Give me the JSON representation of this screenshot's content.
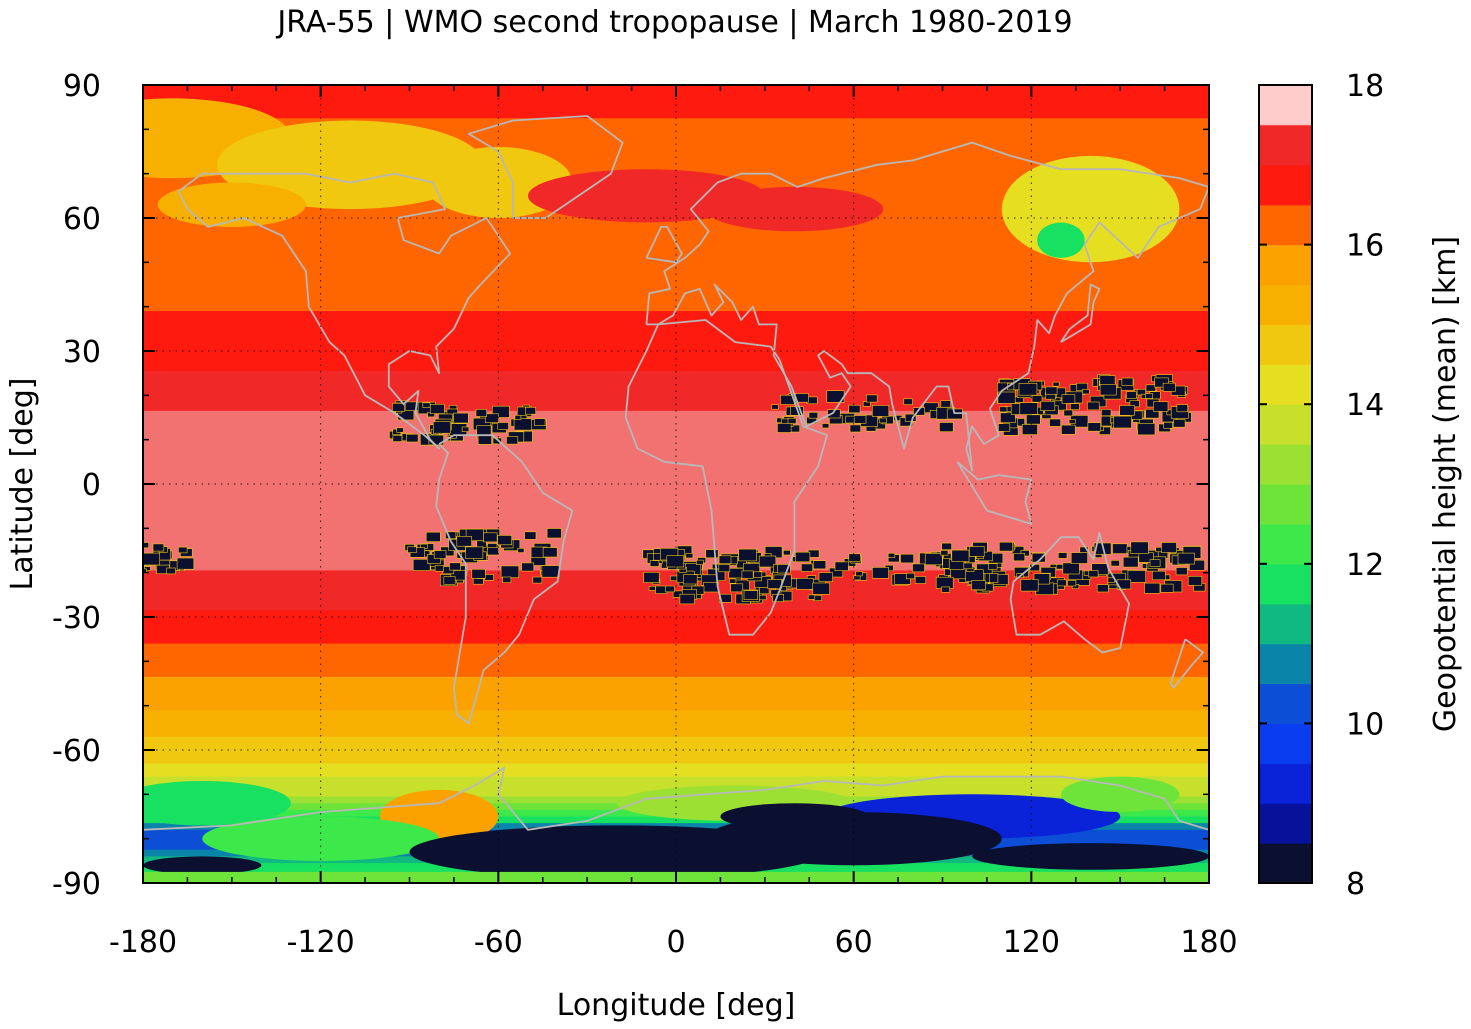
{
  "chart_data": {
    "type": "heatmap",
    "title": "JRA-55 | WMO second tropopause | March 1980-2019",
    "xlabel": "Longitude [deg]",
    "ylabel": "Latitude [deg]",
    "xlim": [
      -180,
      180
    ],
    "ylim": [
      -90,
      90
    ],
    "xticks": [
      "-180",
      "-120",
      "-60",
      "0",
      "60",
      "120",
      "180"
    ],
    "yticks": [
      "90",
      "60",
      "30",
      "0",
      "-30",
      "-60",
      "-90"
    ],
    "xtick_values": [
      -180,
      -120,
      -60,
      0,
      60,
      120,
      180
    ],
    "ytick_values": [
      90,
      60,
      30,
      0,
      -30,
      -60,
      -90
    ],
    "grid": "dotted",
    "overlay": "coastlines",
    "colorbar": {
      "label": "Geopotential height (mean) [km]",
      "range": [
        8,
        18
      ],
      "ticks": [
        "18",
        "16",
        "14",
        "12",
        "10",
        "8"
      ],
      "tick_values": [
        18,
        16,
        14,
        12,
        10,
        8
      ],
      "levels": [
        8.0,
        8.5,
        9.0,
        9.5,
        10.0,
        10.5,
        11.0,
        11.5,
        12.0,
        12.5,
        13.0,
        13.5,
        14.0,
        14.5,
        15.0,
        15.5,
        16.0,
        16.5,
        17.0,
        17.5,
        18.0
      ],
      "colors": [
        "#0b1030",
        "#07119a",
        "#0a22d8",
        "#0a3cf0",
        "#0c4fd6",
        "#0a84a8",
        "#10b882",
        "#18e060",
        "#3ce84a",
        "#6ee43a",
        "#9ce034",
        "#c6e02c",
        "#e6de20",
        "#f0c810",
        "#f8b000",
        "#fca200",
        "#ff6600",
        "#ff1a10",
        "#f02828",
        "#f27272",
        "#ffcccc"
      ]
    },
    "latitude_profile_km": [
      {
        "lat": 90,
        "km": 16.6
      },
      {
        "lat": 75,
        "km": 16.4
      },
      {
        "lat": 60,
        "km": 16.2
      },
      {
        "lat": 45,
        "km": 16.3
      },
      {
        "lat": 30,
        "km": 16.8
      },
      {
        "lat": 20,
        "km": 17.3
      },
      {
        "lat": 10,
        "km": 17.8
      },
      {
        "lat": 0,
        "km": 17.9
      },
      {
        "lat": -10,
        "km": 17.8
      },
      {
        "lat": -20,
        "km": 17.5
      },
      {
        "lat": -30,
        "km": 16.9
      },
      {
        "lat": -40,
        "km": 16.2
      },
      {
        "lat": -50,
        "km": 15.6
      },
      {
        "lat": -60,
        "km": 14.8
      },
      {
        "lat": -70,
        "km": 13.6
      },
      {
        "lat": -80,
        "km": 10.0
      },
      {
        "lat": -90,
        "km": 12.5
      }
    ],
    "colors": {
      "coastline": "#b8b8b8",
      "grid": "#000000",
      "frame": "#000000",
      "low_value": "#0b1030"
    }
  }
}
